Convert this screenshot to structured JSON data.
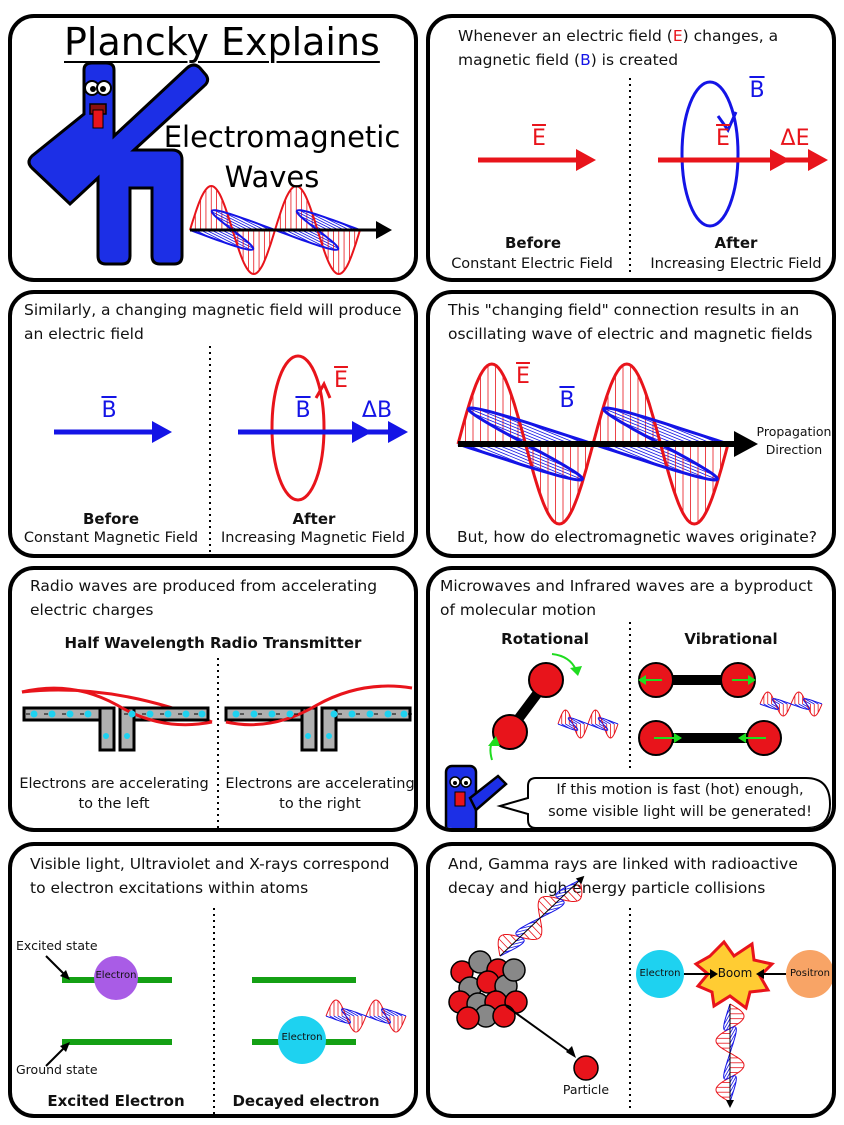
{
  "title": "Plancky Explains",
  "title_topic_line1": "Electromagnetic",
  "title_topic_line2": "Waves",
  "p2": {
    "caption_pre": "Whenever an electric field (",
    "caption_e": "E",
    "caption_mid": ") changes, a",
    "caption_line2_pre": "magnetic field (",
    "caption_b": "B",
    "caption_line2_post": ") is created",
    "before_title": "Before",
    "before_sub": "Constant Electric Field",
    "after_title": "After",
    "after_sub": "Increasing Electric Field",
    "e_label": "E",
    "b_label": "B",
    "delta_e": "ΔE"
  },
  "p3": {
    "caption_l1": "Similarly, a changing magnetic field will produce",
    "caption_l2": "an electric field",
    "before_title": "Before",
    "before_sub": "Constant Magnetic Field",
    "after_title": "After",
    "after_sub": "Increasing Magnetic Field",
    "b_label": "B",
    "e_label": "E",
    "delta_b": "ΔB"
  },
  "p4": {
    "caption_l1": "This \"changing field\" connection results in an",
    "caption_l2": "oscillating wave of electric and magnetic fields",
    "e_label": "E",
    "b_label": "B",
    "prop_l1": "Propagation",
    "prop_l2": "Direction",
    "question": "But, how do electromagnetic waves originate?"
  },
  "p5": {
    "caption_l1": "Radio waves are produced from accelerating",
    "caption_l2": "electric charges",
    "heading": "Half Wavelength Radio Transmitter",
    "left_l1": "Electrons are accelerating",
    "left_l2": "to the left",
    "right_l1": "Electrons are accelerating",
    "right_l2": "to the right"
  },
  "p6": {
    "caption_l1": "Microwaves and Infrared waves are a byproduct",
    "caption_l2": "of molecular motion",
    "rot": "Rotational",
    "vib": "Vibrational",
    "bubble_l1": "If this motion is fast (hot) enough,",
    "bubble_l2": "some visible light will be generated!"
  },
  "p7": {
    "caption_l1": "Visible light, Ultraviolet and X-rays correspond",
    "caption_l2": "to electron excitations within atoms",
    "excited_state": "Excited state",
    "ground_state": "Ground state",
    "electron": "Electron",
    "excited_title": "Excited Electron",
    "decayed_title": "Decayed electron"
  },
  "p8": {
    "caption_l1": "And, Gamma rays are linked with radioactive",
    "caption_l2": "decay and high energy particle collisions",
    "particle": "Particle",
    "electron": "Electron",
    "boom": "Boom",
    "positron": "Positron"
  },
  "colors": {
    "red": "#e8141b",
    "blue": "#1414e6",
    "green": "#14a014",
    "purple": "#a95ce6",
    "cyan": "#1ed2f0",
    "orange": "#f8a466"
  }
}
